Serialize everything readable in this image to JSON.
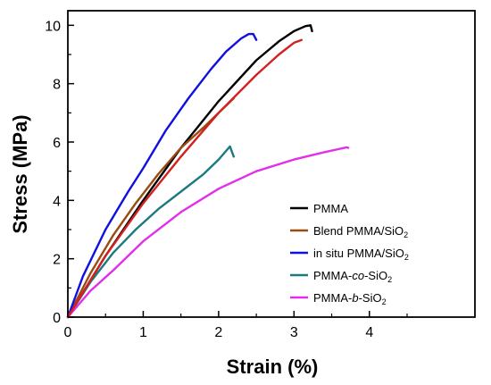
{
  "chart_data": {
    "type": "line",
    "xlabel": "Strain (%)",
    "ylabel": "Stress (MPa)",
    "xlim": [
      0,
      5.4
    ],
    "ylim": [
      0,
      10.5
    ],
    "xticks": [
      0,
      1,
      2,
      3,
      4
    ],
    "yticks": [
      0,
      2,
      4,
      6,
      8,
      10
    ],
    "grid": false,
    "legend_position": "bottom-right",
    "series": [
      {
        "name": "PMMA",
        "name_parts": [
          {
            "text": "PMMA",
            "style": "normal"
          }
        ],
        "color": "#000000",
        "x": [
          0,
          0.5,
          1.0,
          1.5,
          2.0,
          2.5,
          2.8,
          3.0,
          3.15,
          3.22,
          3.24
        ],
        "y": [
          0,
          2.1,
          4.0,
          5.8,
          7.4,
          8.8,
          9.45,
          9.8,
          9.97,
          10.0,
          9.8
        ]
      },
      {
        "name": "Blend PMMA/SiO2",
        "name_parts": [
          {
            "text": "Blend PMMA/SiO",
            "style": "normal"
          },
          {
            "text": "2",
            "style": "sub"
          }
        ],
        "color": "#9b4a10",
        "x": [
          0,
          0.3,
          0.6,
          0.9,
          1.2,
          1.5,
          1.8,
          2.0,
          2.2
        ],
        "y": [
          0,
          1.5,
          2.8,
          3.9,
          4.9,
          5.8,
          6.5,
          7.0,
          7.5
        ]
      },
      {
        "name": "in situ PMMA/SiO2",
        "name_parts": [
          {
            "text": "in situ PMMA/SiO",
            "style": "normal"
          },
          {
            "text": "2",
            "style": "sub"
          }
        ],
        "color": "#1010e0",
        "x": [
          0,
          0.2,
          0.5,
          0.8,
          1.0,
          1.3,
          1.6,
          1.9,
          2.1,
          2.3,
          2.4,
          2.46,
          2.5
        ],
        "y": [
          0,
          1.4,
          3.0,
          4.3,
          5.1,
          6.4,
          7.5,
          8.5,
          9.1,
          9.55,
          9.7,
          9.7,
          9.5
        ]
      },
      {
        "name": "PMMA-co-SiO2",
        "name_parts": [
          {
            "text": "PMMA-",
            "style": "normal"
          },
          {
            "text": "co",
            "style": "italic"
          },
          {
            "text": "-SiO",
            "style": "normal"
          },
          {
            "text": "2",
            "style": "sub"
          }
        ],
        "color": "#1a7a80",
        "x": [
          0,
          0.3,
          0.6,
          0.9,
          1.2,
          1.5,
          1.8,
          2.0,
          2.15,
          2.2
        ],
        "y": [
          0,
          1.2,
          2.2,
          3.0,
          3.7,
          4.3,
          4.9,
          5.4,
          5.85,
          5.5
        ]
      },
      {
        "name": "PMMA-b-SiO2",
        "name_parts": [
          {
            "text": "PMMA-",
            "style": "normal"
          },
          {
            "text": "b",
            "style": "italic"
          },
          {
            "text": "-SiO",
            "style": "normal"
          },
          {
            "text": "2",
            "style": "sub"
          }
        ],
        "color": "#e030e8",
        "x": [
          0,
          0.3,
          0.6,
          1.0,
          1.5,
          2.0,
          2.5,
          3.0,
          3.4,
          3.7,
          3.72
        ],
        "y": [
          0,
          0.9,
          1.6,
          2.6,
          3.6,
          4.4,
          5.0,
          5.4,
          5.65,
          5.82,
          5.8
        ]
      }
    ]
  },
  "overlay": {
    "color": "#d42020",
    "x": [
      0,
      0.5,
      1.0,
      1.5,
      2.0,
      2.5,
      2.8,
      3.0,
      3.1
    ],
    "y": [
      0,
      2.1,
      3.9,
      5.5,
      7.0,
      8.3,
      9.0,
      9.4,
      9.5
    ]
  }
}
